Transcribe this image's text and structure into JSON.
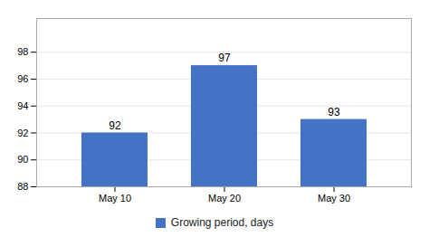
{
  "chart_data": {
    "type": "bar",
    "categories": [
      "May 10",
      "May 20",
      "May 30"
    ],
    "series": [
      {
        "name": "Growing period, days",
        "color": "#4472C4",
        "values": [
          92,
          97,
          93
        ]
      }
    ],
    "ylim": [
      88,
      100.5
    ],
    "yticks": [
      88,
      90,
      92,
      94,
      96,
      98
    ],
    "grid": true,
    "data_labels": true,
    "legend": "bottom"
  }
}
